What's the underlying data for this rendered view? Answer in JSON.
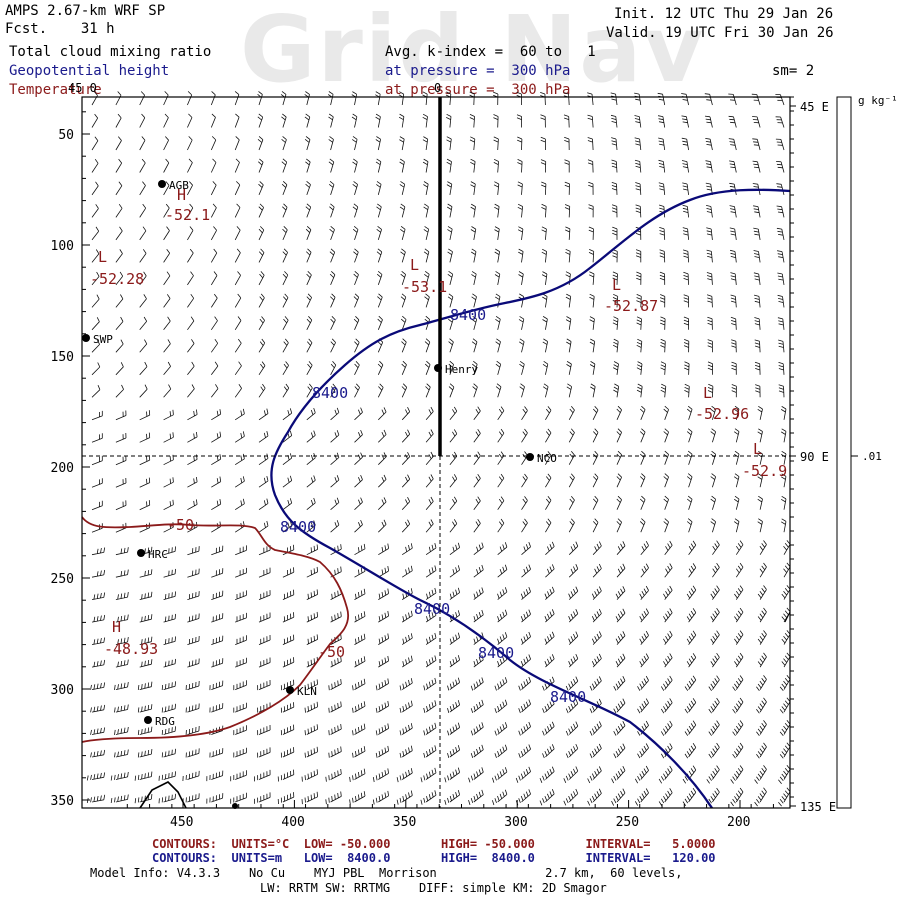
{
  "watermark": "Grid Nav",
  "header": {
    "model": "AMPS 2.67-km WRF SP",
    "fcst": "Fcst.    31 h",
    "init": "Init. 12 UTC Thu 29 Jan 26",
    "valid": "Valid. 19 UTC Fri 30 Jan 26",
    "field1": "Total cloud mixing ratio",
    "field2": "Geopotential height",
    "field3": "Temperature",
    "avg": "Avg. k-index =  60 to   1",
    "pressure1": "at pressure =  300 hPa",
    "pressure2": "at pressure =  300 hPa",
    "sm": "sm= 2"
  },
  "colors": {
    "black": "#000000",
    "navy": "#0a0a78",
    "maroon": "#8b1a1a",
    "blue_text": "#1a1a8c"
  },
  "axes": {
    "x_ticks": [
      "450",
      "400",
      "350",
      "300",
      "250",
      "200"
    ],
    "y_ticks": [
      "50",
      "100",
      "150",
      "200",
      "250",
      "300",
      "350"
    ],
    "x_values": [
      450,
      400,
      350,
      300,
      250,
      200
    ],
    "y_values": [
      50,
      100,
      150,
      200,
      250,
      300,
      350
    ],
    "top_marker": "0",
    "top_left_marker": "45 0",
    "right_labels": [
      "45 E",
      "90 E",
      "135 E"
    ],
    "right_values": [
      45,
      196,
      352
    ]
  },
  "colorbar": {
    "unit": "g kg⁻¹",
    "label": ".01"
  },
  "stations": [
    {
      "name": "AGB"
    },
    {
      "name": "SWP"
    },
    {
      "name": "Henry"
    },
    {
      "name": "NCO"
    },
    {
      "name": "HRC"
    },
    {
      "name": "KLN"
    },
    {
      "name": "RDG"
    }
  ],
  "temperature_labels": [
    "L",
    "-52.28",
    "H",
    "-52.1",
    "L",
    "-53.1",
    "L",
    "-52.87",
    "L",
    "-52.96",
    "L",
    "-52.9",
    "-50",
    "H",
    "-48.93",
    "-50"
  ],
  "height_labels": [
    "8400",
    "8400",
    "8400",
    "8400",
    "8400",
    "8400"
  ],
  "footer": {
    "line1": "CONTOURS:  UNITS=°C  LOW= -50.000       HIGH= -50.000       INTERVAL=   5.0000",
    "line2": "CONTOURS:  UNITS=m   LOW=  8400.0       HIGH=  8400.0       INTERVAL=   120.00",
    "line3": "Model Info: V4.3.3    No Cu    MYJ PBL  Morrison               2.7 km,  60 levels,",
    "line4": "LW: RRTM SW: RRTMG    DIFF: simple KM: 2D Smagor"
  }
}
